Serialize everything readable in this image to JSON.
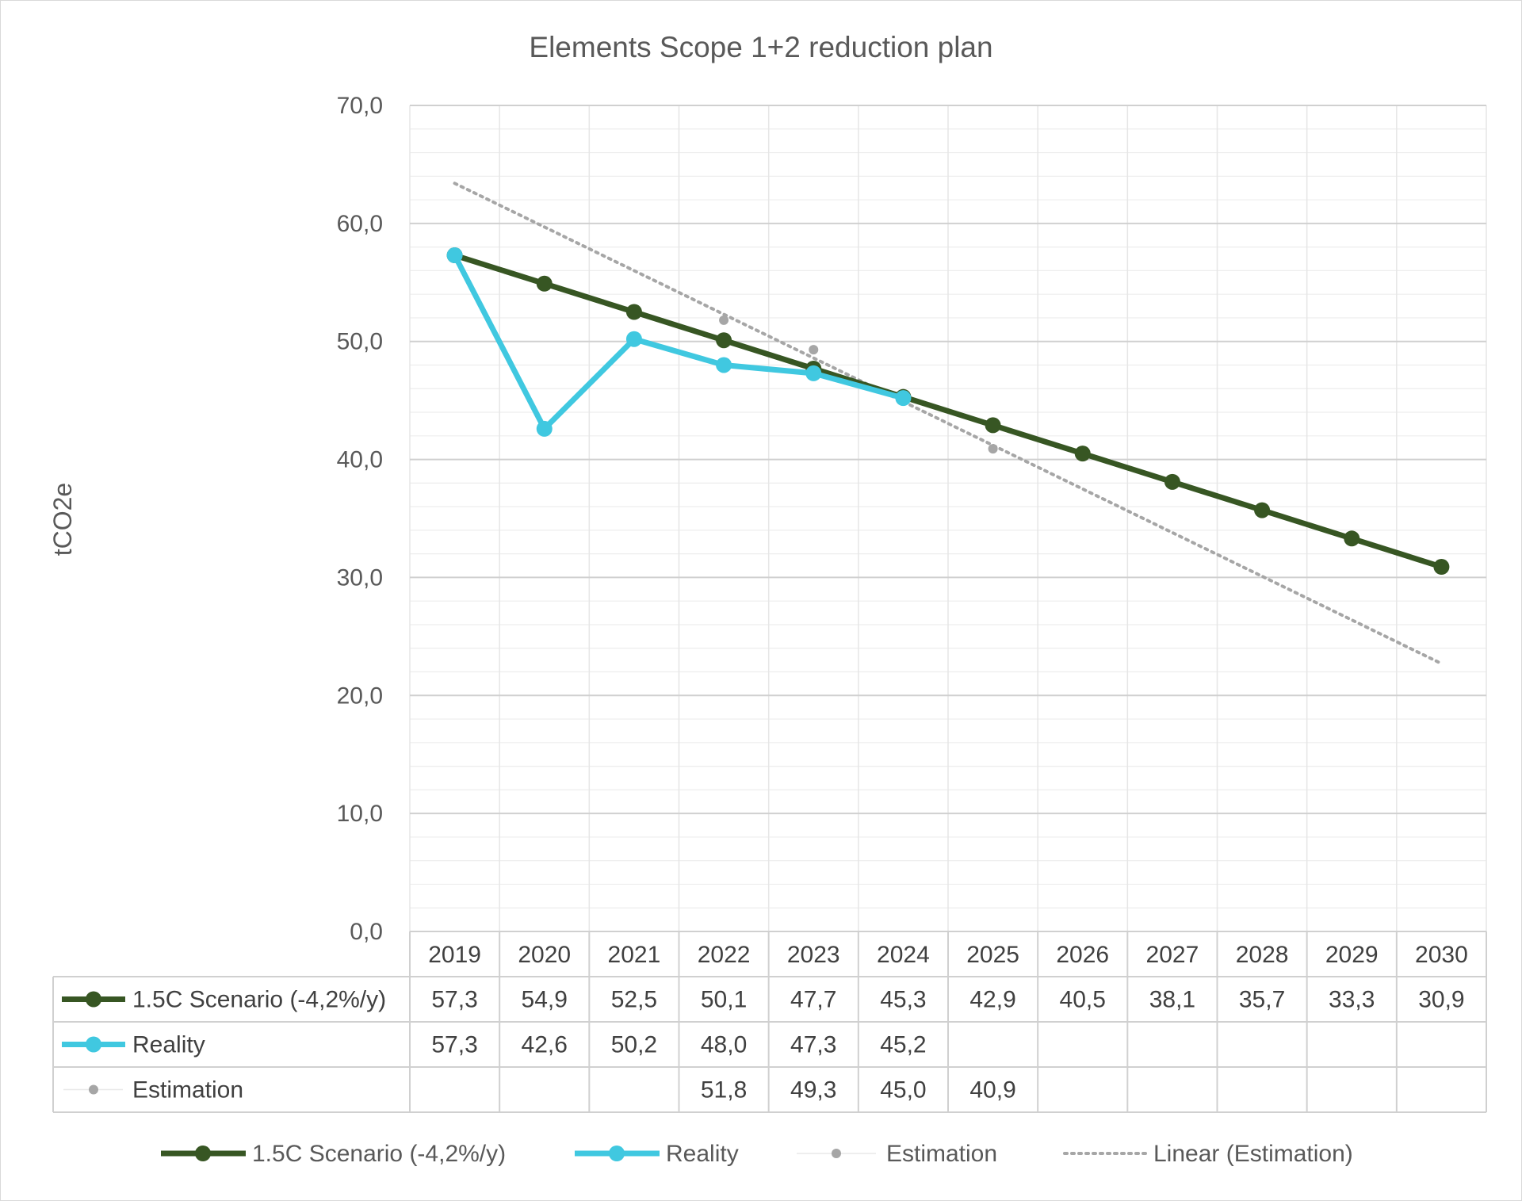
{
  "chart_data": {
    "type": "line",
    "title": "Elements Scope 1+2 reduction plan",
    "ylabel": "tCO2e",
    "xlabel": "",
    "ylim": [
      0,
      70
    ],
    "ytick_step": 10,
    "minor_grid_step": 2,
    "y_tick_labels": [
      "0,0",
      "10,0",
      "20,0",
      "30,0",
      "40,0",
      "50,0",
      "60,0",
      "70,0"
    ],
    "grid": true,
    "legend_position": "bottom",
    "data_table": true,
    "categories": [
      "2019",
      "2020",
      "2021",
      "2022",
      "2023",
      "2024",
      "2025",
      "2026",
      "2027",
      "2028",
      "2029",
      "2030"
    ],
    "series": [
      {
        "name": "1.5C Scenario (-4,2%/y)",
        "color": "#375623",
        "style": "solid-marker",
        "values": [
          57.3,
          54.9,
          52.5,
          50.1,
          47.7,
          45.3,
          42.9,
          40.5,
          38.1,
          35.7,
          33.3,
          30.9
        ],
        "labels": [
          "57,3",
          "54,9",
          "52,5",
          "50,1",
          "47,7",
          "45,3",
          "42,9",
          "40,5",
          "38,1",
          "35,7",
          "33,3",
          "30,9"
        ]
      },
      {
        "name": "Reality",
        "color": "#40C8E0",
        "style": "solid-marker",
        "values": [
          57.3,
          42.6,
          50.2,
          48.0,
          47.3,
          45.2,
          null,
          null,
          null,
          null,
          null,
          null
        ],
        "labels": [
          "57,3",
          "42,6",
          "50,2",
          "48,0",
          "47,3",
          "45,2",
          "",
          "",
          "",
          "",
          "",
          ""
        ]
      },
      {
        "name": "Estimation",
        "color": "#A6A6A6",
        "style": "marker-only",
        "values": [
          null,
          null,
          null,
          51.8,
          49.3,
          45.0,
          40.9,
          null,
          null,
          null,
          null,
          null
        ],
        "labels": [
          "",
          "",
          "",
          "51,8",
          "49,3",
          "45,0",
          "40,9",
          "",
          "",
          "",
          "",
          ""
        ]
      }
    ],
    "trendline": {
      "name": "Linear (Estimation)",
      "color": "#A6A6A6",
      "style": "dotted",
      "based_on": "Estimation"
    }
  }
}
